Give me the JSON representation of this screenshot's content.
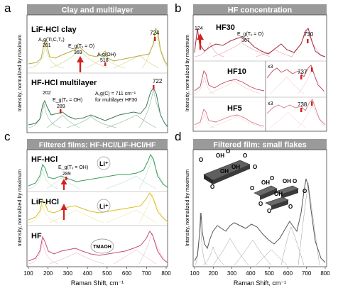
{
  "panels": {
    "a": {
      "letter": "a",
      "header": "Clay and multilayer",
      "title_top": "LiF-HCl clay",
      "title_bottom": "HF-HCl multilayer",
      "ann_a1g_top": "A₁g(Ti,C,Tₓ)",
      "ann_a1g_top_val": "201",
      "ann_eg_top": "E_g(Tₓ = O)",
      "ann_eg_top_val": "369",
      "ann_a1g_oh": "A₁g(OH)",
      "ann_a1g_oh_val": "518",
      "ann_724": "724",
      "ann_202": "202",
      "ann_eg_bottom": "E_g(Tₓ = OH)",
      "ann_eg_bottom_val": "289",
      "ann_722": "722",
      "ann_box_line1": "A₁g(C) = 711 cm⁻¹",
      "ann_box_line2": "for multilayer HF30"
    },
    "b": {
      "letter": "b",
      "header": "HF concentration",
      "title1": "HF30",
      "title2": "HF10",
      "title3": "HF5",
      "ann_124": "124",
      "ann_eg": "E_g(Tₓ = O)",
      "ann_eg_val": "367",
      "ann_730": "730",
      "ann_x3a": "x3",
      "ann_737": "737",
      "ann_x3b": "x3",
      "ann_738": "738"
    },
    "c": {
      "letter": "c",
      "header": "Filtered films: HF-HCl/LiF-HCl/HF",
      "title1": "HF-HCl",
      "title2": "LiF-HCl",
      "title3": "HF",
      "ann_eg": "E_g(Tₓ = OH)",
      "ann_eg_val": "289",
      "ann_li1": "Li⁺",
      "ann_li2": "Li⁺",
      "ann_tmaoh": "TMAOH"
    },
    "d": {
      "letter": "d",
      "header": "Filtered film: small flakes",
      "oh_label": "OH",
      "o_label": "O"
    }
  },
  "axes": {
    "y_label": "Intensity, normalized by maximum",
    "x_label": "Raman Shift, cm⁻¹",
    "x_ticks": [
      "100",
      "200",
      "300",
      "400",
      "500",
      "600",
      "700",
      "800"
    ]
  },
  "colors": {
    "header_bg": "#9a9a9a",
    "arrow": "#d42020",
    "a_top": "#b5ac3a",
    "a_bottom": "#3f7a5a",
    "b_main": "#a8283c",
    "b_light": "#d77a88",
    "c_top": "#3d9b5e",
    "c_mid": "#d9be22",
    "c_bot": "#c44a7b",
    "d_main": "#555555"
  }
}
